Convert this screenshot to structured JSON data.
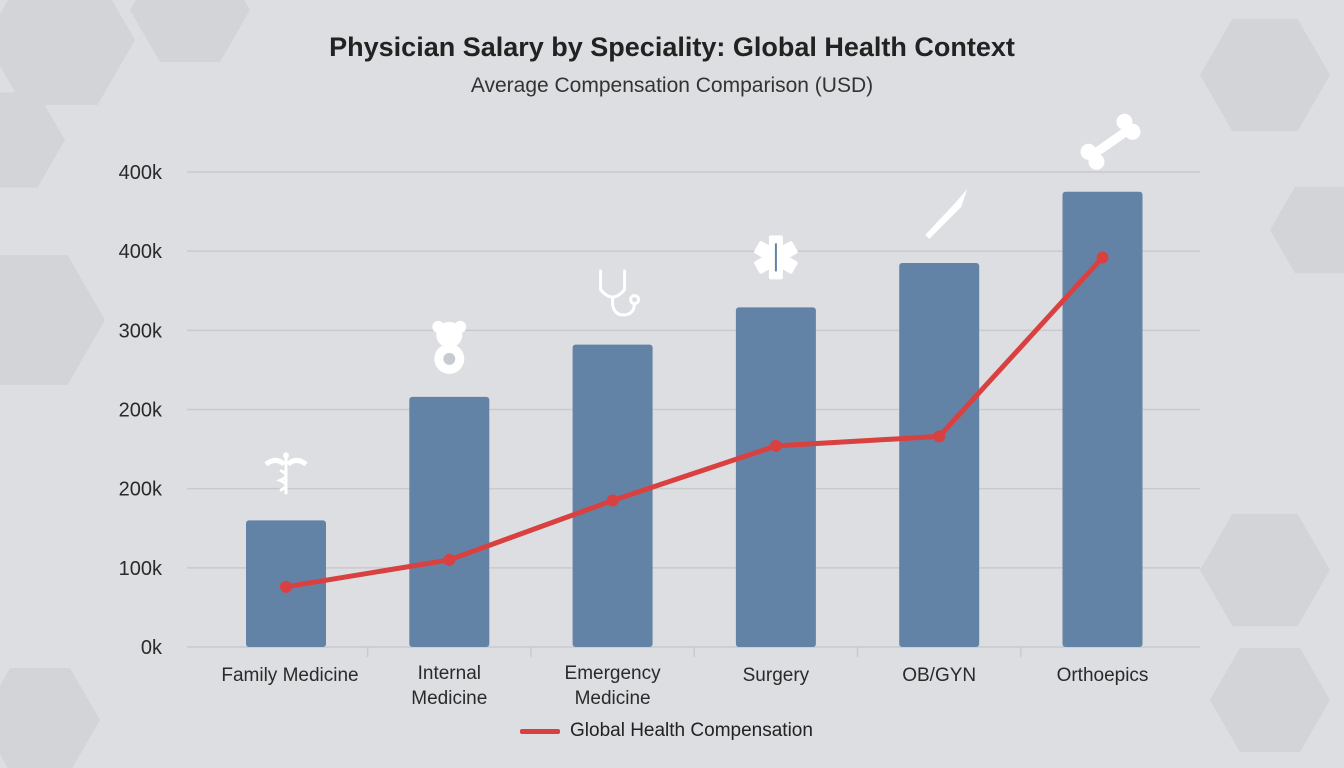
{
  "chart_data": {
    "type": "bar",
    "title": "Physician Salary by Speciality: Global Health Context",
    "subtitle": "Average Compensation Comparison (USD)",
    "xlabel": "",
    "ylabel": "",
    "categories": [
      "Family Medicine",
      "Internal Medicine",
      "Emergency Medicine",
      "Surgery",
      "OB/GYN",
      "Orthoepics"
    ],
    "category_lines": [
      [
        "Family Medicine"
      ],
      [
        "Internal",
        "Medicine"
      ],
      [
        "Emergency",
        "Medicine"
      ],
      [
        "Surgery"
      ],
      [
        "OB/GYN"
      ],
      [
        "Orthoepics"
      ]
    ],
    "y_tick_labels": [
      "0k",
      "100k",
      "200k",
      "200k",
      "300k",
      "400k",
      "400k"
    ],
    "ylim": [
      0,
      600
    ],
    "grid": true,
    "legend_position": "bottom",
    "bar_values": [
      160,
      316,
      382,
      429,
      485,
      575
    ],
    "bar_icons": [
      "caduceus-icon",
      "teddy-bear-icon",
      "stethoscope-icon",
      "star-of-life-icon",
      "scalpel-icon",
      "bone-icon"
    ],
    "series": [
      {
        "name": "Global Health Compensation",
        "type": "line",
        "values": [
          76,
          110,
          185,
          254,
          266,
          492
        ]
      }
    ],
    "colors": {
      "bar": "#6383a6",
      "line": "#d94040",
      "grid": "#c8cacd",
      "background": "#dcdee1"
    }
  }
}
